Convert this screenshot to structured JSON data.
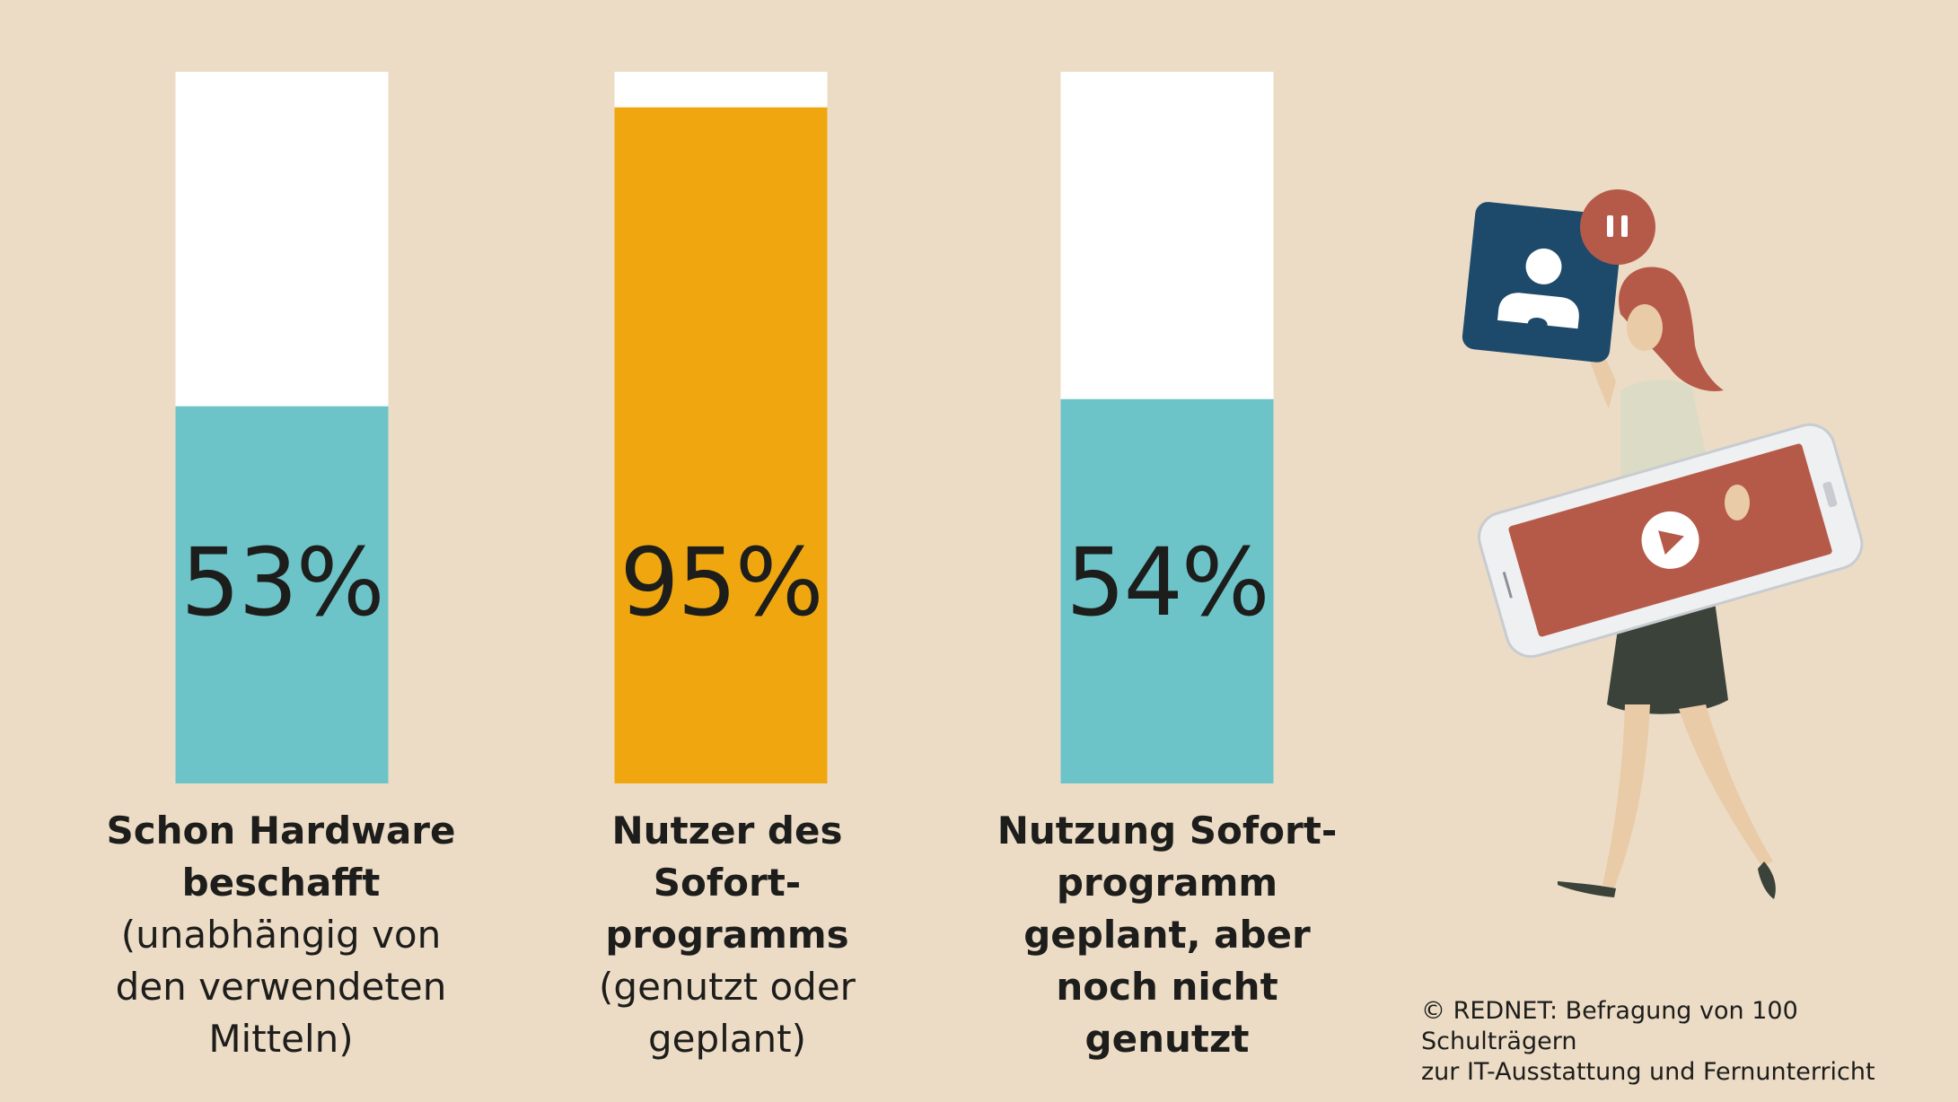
{
  "chart_data": {
    "type": "bar",
    "categories": [
      "Schon Hardware beschafft (unabhängig von den verwendeten Mitteln)",
      "Nutzer des Sofortprogramms (genutzt oder geplant)",
      "Nutzung Sofortprogramm geplant, aber noch nicht genutzt"
    ],
    "values": [
      53,
      95,
      54
    ],
    "value_labels": [
      "53%",
      "95%",
      "54%"
    ],
    "ylim": [
      0,
      100
    ],
    "colors": [
      "#6cc3c8",
      "#f0a70f",
      "#6cc3c8"
    ],
    "background_bar_color": "#ffffff",
    "grid": false
  },
  "labels": [
    {
      "bold_lines": [
        "Schon Hardware",
        "beschafft"
      ],
      "normal_lines": [
        "(unabhängig von",
        "den verwendeten",
        "Mitteln)"
      ]
    },
    {
      "bold_lines": [
        "Nutzer des Sofort-",
        "programms"
      ],
      "normal_lines": [
        "(genutzt oder",
        "geplant)"
      ]
    },
    {
      "bold_lines": [
        "Nutzung Sofort-",
        "programm",
        "geplant, aber",
        "noch nicht",
        "genutzt"
      ],
      "normal_lines": []
    }
  ],
  "source": {
    "line1": "© REDNET: Befragung von 100 Schulträgern",
    "line2": "zur IT-Ausstattung und Fernunterricht"
  },
  "illustration": {
    "icons": [
      "profile-icon",
      "pause-icon",
      "play-icon"
    ],
    "colors": {
      "card": "#1d4a6b",
      "badge": "#b55a48",
      "screen": "#b55a48",
      "skirt": "#3b4239",
      "hair": "#b55a48"
    }
  }
}
